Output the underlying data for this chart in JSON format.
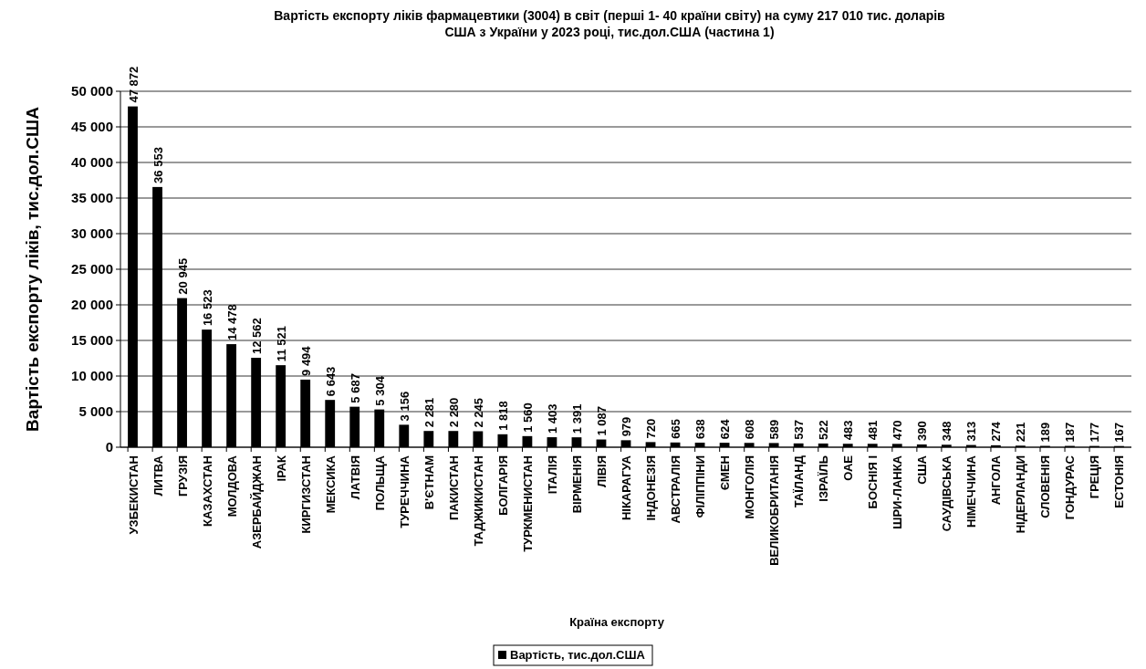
{
  "chart_data": {
    "type": "bar",
    "title": "Вартість експорту ліків фармацевтики (3004) в світ (перші 1- 40 країни світу) на суму 217 010 тис. доларів США з України у 2023 році, тис.дол.США (частина 1)",
    "xlabel": "Країна експорту",
    "ylabel": "Вартість експорту ліків, тис.дол.США",
    "categories": [
      "УЗБЕКИСТАН",
      "ЛИТВА",
      "ГРУЗІЯ",
      "КАЗАХСТАН",
      "МОЛДОВА",
      "АЗЕРБАЙДЖАН",
      "ІРАК",
      "КИРГИЗСТАН",
      "МЕКСИКА",
      "ЛАТВІЯ",
      "ПОЛЬЩА",
      "ТУРЕЧЧИНА",
      "В'ЄТНАМ",
      "ПАКИСТАН",
      "ТАДЖИКИСТАН",
      "БОЛГАРІЯ",
      "ТУРКМЕНИСТАН",
      "ІТАЛІЯ",
      "ВІРМЕНІЯ",
      "ЛІВІЯ",
      "НІКАРАГУА",
      "ІНДОНЕЗІЯ",
      "АВСТРАЛІЯ",
      "ФІЛІППІНИ",
      "ЄМЕН",
      "МОНГОЛІЯ",
      "ВЕЛИКОБРИТАНІЯ",
      "ТАЇЛАНД",
      "ІЗРАЇЛЬ",
      "ОАЕ",
      "БОСНІЯ І",
      "ШРИ-ЛАНКА",
      "США",
      "САУДІВСЬКА",
      "НІМЕЧЧИНА",
      "АНГОЛА",
      "НІДЕРЛАНДИ",
      "СЛОВЕНІЯ",
      "ГОНДУРАС",
      "ГРЕЦІЯ",
      "ЕСТОНІЯ"
    ],
    "series": [
      {
        "name": "Вартість, тис.дол.США",
        "color": "#000000",
        "values": [
          47872,
          36553,
          20945,
          16523,
          14478,
          12562,
          11521,
          9494,
          6643,
          5687,
          5304,
          3156,
          2281,
          2280,
          2245,
          1818,
          1560,
          1403,
          1391,
          1087,
          979,
          720,
          665,
          638,
          624,
          608,
          589,
          537,
          522,
          483,
          481,
          470,
          390,
          348,
          313,
          274,
          221,
          189,
          187,
          177,
          167
        ],
        "value_labels": [
          "47 872",
          "36 553",
          "20 945",
          "16 523",
          "14 478",
          "12 562",
          "11 521",
          "9 494",
          "6 643",
          "5 687",
          "5 304",
          "3 156",
          "2 281",
          "2 280",
          "2 245",
          "1 818",
          "1 560",
          "1 403",
          "1 391",
          "1 087",
          "979",
          "720",
          "665",
          "638",
          "624",
          "608",
          "589",
          "537",
          "522",
          "483",
          "481",
          "470",
          "390",
          "348",
          "313",
          "274",
          "221",
          "189",
          "187",
          "177",
          "167"
        ]
      }
    ],
    "ylim": [
      0,
      50000
    ],
    "yticks": [
      0,
      {
        "value": 5000,
        "label": "5 000"
      },
      {
        "value": 10000,
        "label": "10 000"
      },
      {
        "value": 15000,
        "label": "15 000"
      },
      {
        "value": 20000,
        "label": "20 000"
      },
      {
        "value": 25000,
        "label": "25 000"
      },
      {
        "value": 30000,
        "label": "30 000"
      },
      {
        "value": 35000,
        "label": "35 000"
      },
      {
        "value": 40000,
        "label": "40 000"
      },
      {
        "value": 45000,
        "label": "45 000"
      },
      {
        "value": 50000,
        "label": "50 000"
      }
    ],
    "grid": "y",
    "legend": "bottom"
  }
}
